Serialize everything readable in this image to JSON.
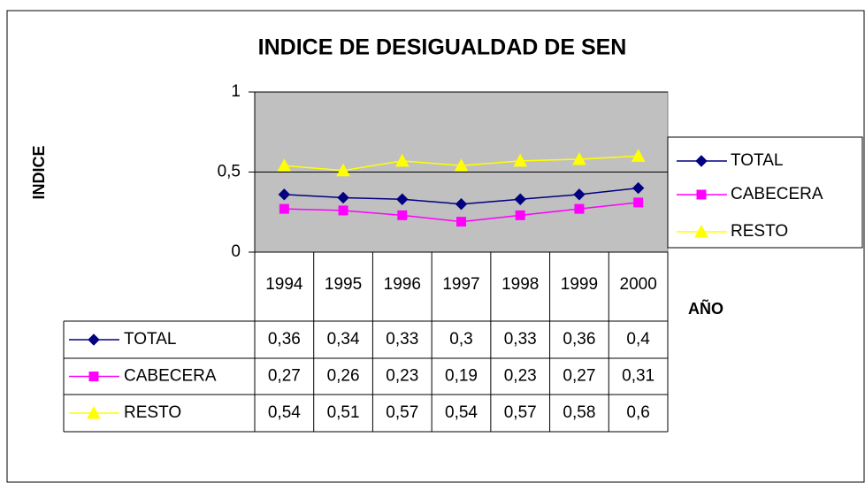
{
  "chart_data": {
    "type": "line",
    "title": "INDICE DE DESIGUALDAD DE SEN",
    "y_label": "INDICE",
    "x_label": "AÑO",
    "categories": [
      "1994",
      "1995",
      "1996",
      "1997",
      "1998",
      "1999",
      "2000"
    ],
    "series": [
      {
        "name": "TOTAL",
        "color": "#000080",
        "marker": "diamond",
        "values": [
          0.36,
          0.34,
          0.33,
          0.3,
          0.33,
          0.36,
          0.4
        ],
        "value_labels": [
          "0,36",
          "0,34",
          "0,33",
          "0,3",
          "0,33",
          "0,36",
          "0,4"
        ]
      },
      {
        "name": "CABECERA",
        "color": "#ff00ff",
        "marker": "square",
        "values": [
          0.27,
          0.26,
          0.23,
          0.19,
          0.23,
          0.27,
          0.31
        ],
        "value_labels": [
          "0,27",
          "0,26",
          "0,23",
          "0,19",
          "0,23",
          "0,27",
          "0,31"
        ]
      },
      {
        "name": "RESTO",
        "color": "#ffff00",
        "marker": "triangle",
        "values": [
          0.54,
          0.51,
          0.57,
          0.54,
          0.57,
          0.58,
          0.6
        ],
        "value_labels": [
          "0,54",
          "0,51",
          "0,57",
          "0,54",
          "0,57",
          "0,58",
          "0,6"
        ]
      }
    ],
    "ylim": [
      0,
      1
    ],
    "yticks": [
      0,
      {
        "value": 0.5,
        "label": "0,5"
      },
      1
    ],
    "grid": true,
    "legend": "right",
    "plot_background": "#c0c0c0"
  }
}
